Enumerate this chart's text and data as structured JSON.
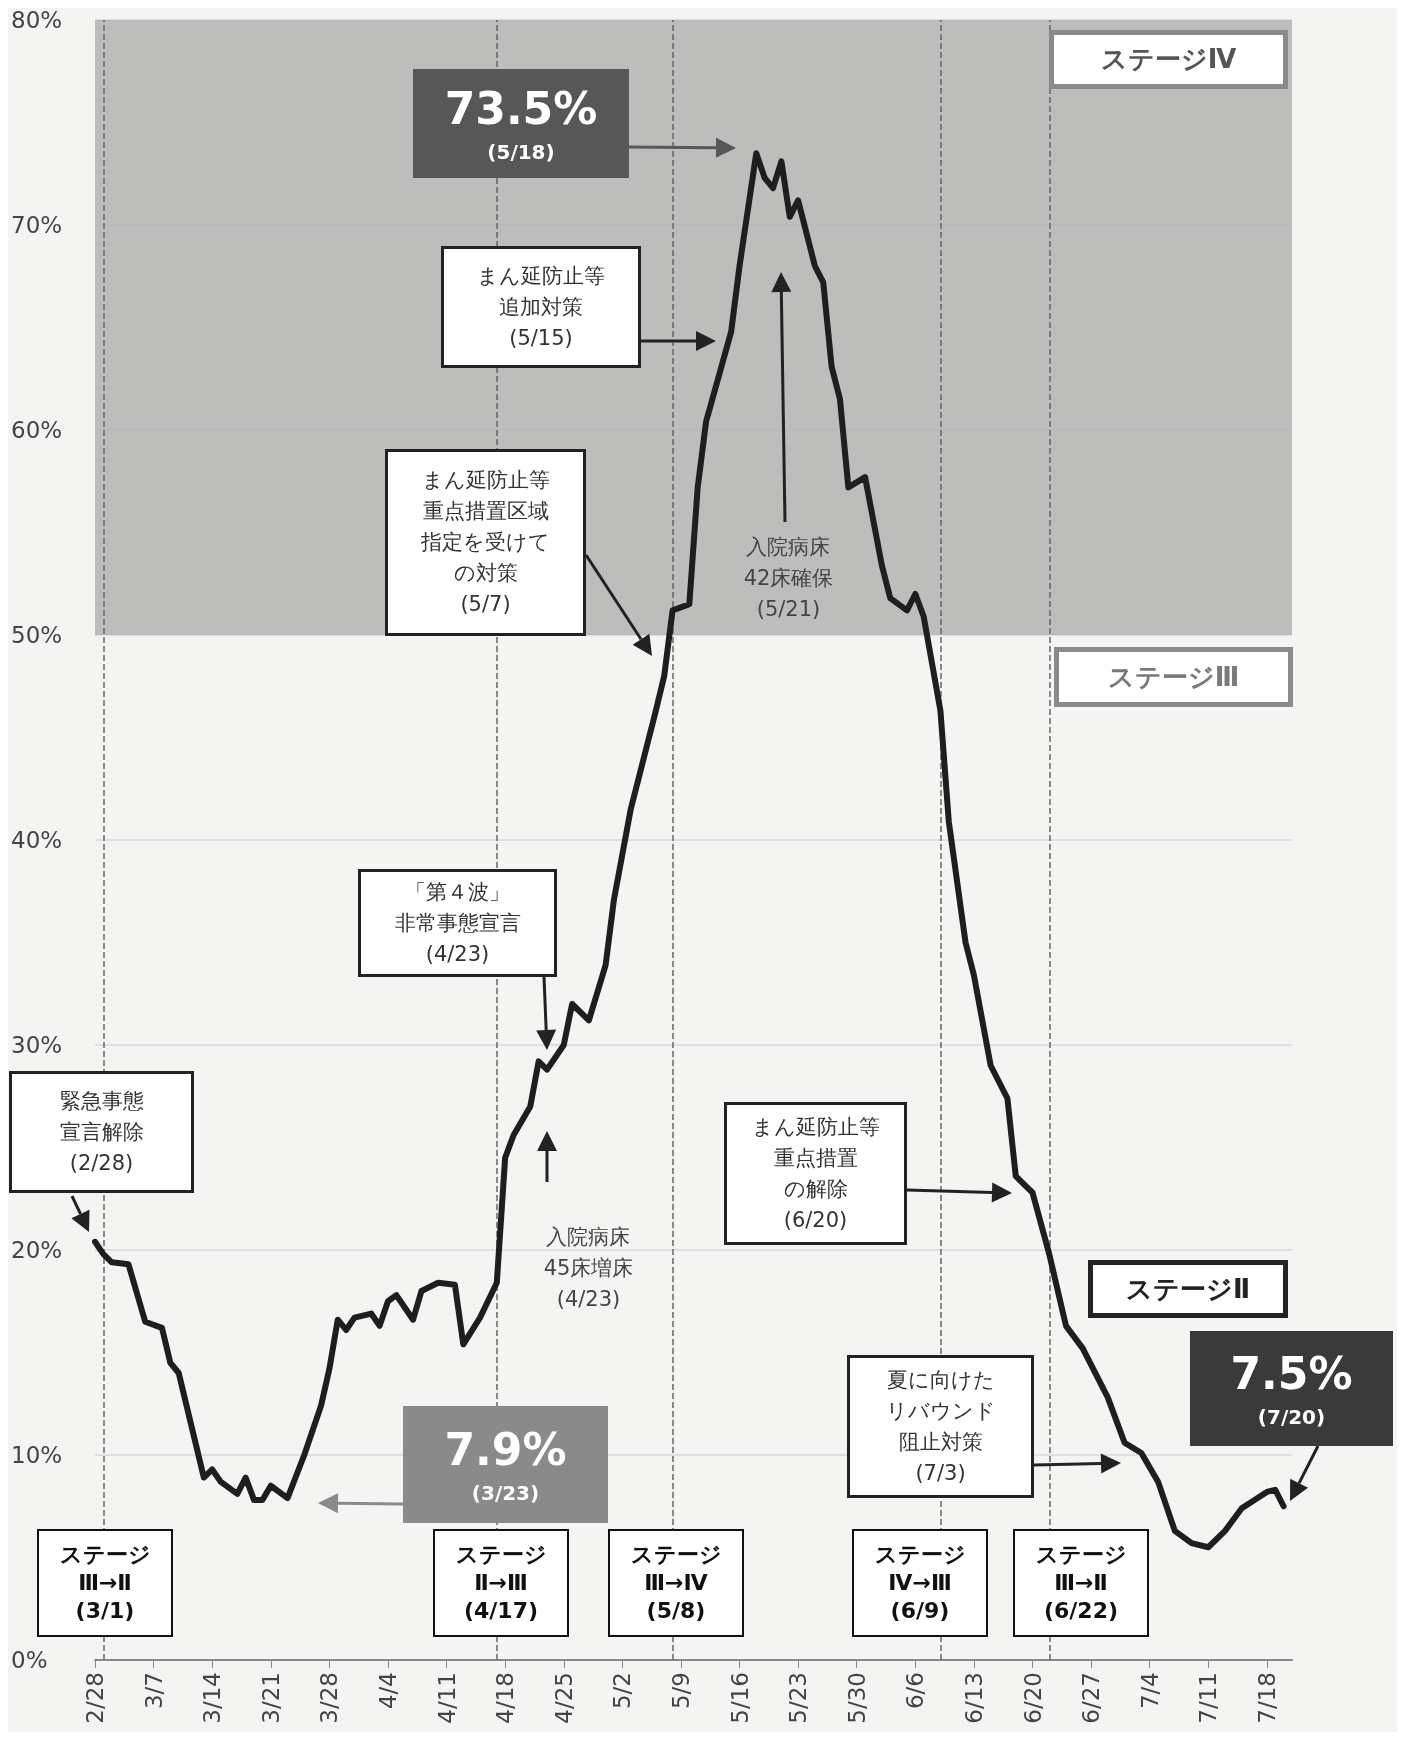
{
  "chart_data": {
    "type": "line",
    "x": [
      "--02-28",
      "--03-01",
      "--03-02",
      "--03-04",
      "--03-06",
      "--03-08",
      "--03-09",
      "--03-10",
      "--03-13",
      "--03-14",
      "--03-15",
      "--03-17",
      "--03-18",
      "--03-19",
      "--03-20",
      "--03-21",
      "--03-23",
      "--03-25",
      "--03-27",
      "--03-28",
      "--03-29",
      "--03-30",
      "--03-31",
      "--04-02",
      "--04-03",
      "--04-04",
      "--04-05",
      "--04-07",
      "--04-08",
      "--04-10",
      "--04-12",
      "--04-13",
      "--04-15",
      "--04-17",
      "--04-18",
      "--04-19",
      "--04-21",
      "--04-22",
      "--04-23",
      "--04-25",
      "--04-26",
      "--04-28",
      "--04-30",
      "--05-01",
      "--05-03",
      "--05-04",
      "--05-06",
      "--05-07",
      "--05-08",
      "--05-10",
      "--05-11",
      "--05-12",
      "--05-15",
      "--05-16",
      "--05-18",
      "--05-19",
      "--05-20",
      "--05-21",
      "--05-22",
      "--05-23",
      "--05-25",
      "--05-26",
      "--05-27",
      "--05-28",
      "--05-29",
      "--05-31",
      "--06-02",
      "--06-03",
      "--06-05",
      "--06-06",
      "--06-07",
      "--06-09",
      "--06-10",
      "--06-12",
      "--06-13",
      "--06-15",
      "--06-17",
      "--06-18",
      "--06-20",
      "--06-22",
      "--06-24",
      "--06-26",
      "--06-29",
      "--07-01",
      "--07-03",
      "--07-05",
      "--07-07",
      "--07-09",
      "--07-11",
      "--07-13",
      "--07-15",
      "--07-18",
      "--07-19",
      "--07-20"
    ],
    "series": [
      {
        "color": "#1e1e1e",
        "values": [
          20.4,
          19.8,
          19.4,
          19.3,
          16.5,
          16.2,
          14.5,
          14.0,
          8.9,
          9.3,
          8.7,
          8.1,
          8.9,
          7.8,
          7.8,
          8.5,
          7.9,
          10.0,
          12.4,
          14.2,
          16.6,
          16.1,
          16.7,
          16.9,
          16.3,
          17.5,
          17.8,
          16.6,
          18.0,
          18.4,
          18.3,
          15.4,
          16.7,
          18.4,
          24.5,
          25.6,
          27.0,
          29.2,
          28.8,
          30.0,
          32.0,
          31.2,
          33.9,
          37.1,
          41.5,
          43.1,
          46.3,
          48.0,
          51.2,
          51.5,
          57.2,
          60.4,
          64.8,
          68.0,
          73.5,
          72.3,
          71.8,
          73.1,
          70.4,
          71.2,
          68.0,
          67.2,
          63.1,
          61.5,
          57.2,
          57.7,
          53.4,
          51.8,
          51.2,
          52.0,
          50.9,
          46.3,
          40.9,
          35.0,
          33.4,
          29.0,
          27.4,
          23.6,
          22.8,
          19.8,
          16.3,
          15.2,
          12.8,
          10.6,
          10.1,
          8.7,
          6.3,
          5.7,
          5.5,
          6.3,
          7.4,
          8.2,
          8.3,
          7.5
        ]
      }
    ],
    "xlim": [
      "--02-28",
      "--07-21"
    ],
    "xticks": [
      {
        "value": "--02-28",
        "label": "2/28"
      },
      {
        "value": "--03-07",
        "label": "3/7"
      },
      {
        "value": "--03-14",
        "label": "3/14"
      },
      {
        "value": "--03-21",
        "label": "3/21"
      },
      {
        "value": "--03-28",
        "label": "3/28"
      },
      {
        "value": "--04-04",
        "label": "4/4"
      },
      {
        "value": "--04-11",
        "label": "4/11"
      },
      {
        "value": "--04-18",
        "label": "4/18"
      },
      {
        "value": "--04-25",
        "label": "4/25"
      },
      {
        "value": "--05-02",
        "label": "5/2"
      },
      {
        "value": "--05-09",
        "label": "5/9"
      },
      {
        "value": "--05-16",
        "label": "5/16"
      },
      {
        "value": "--05-23",
        "label": "5/23"
      },
      {
        "value": "--05-30",
        "label": "5/30"
      },
      {
        "value": "--06-06",
        "label": "6/6"
      },
      {
        "value": "--06-13",
        "label": "6/13"
      },
      {
        "value": "--06-20",
        "label": "6/20"
      },
      {
        "value": "--06-27",
        "label": "6/27"
      },
      {
        "value": "--07-04",
        "label": "7/4"
      },
      {
        "value": "--07-11",
        "label": "7/11"
      },
      {
        "value": "--07-18",
        "label": "7/18"
      }
    ],
    "ylim": [
      0,
      80
    ],
    "yticks": [
      {
        "value": 0,
        "label": "0%"
      },
      {
        "value": 10,
        "label": "10%"
      },
      {
        "value": 20,
        "label": "20%"
      },
      {
        "value": 30,
        "label": "30%"
      },
      {
        "value": 40,
        "label": "40%"
      },
      {
        "value": 50,
        "label": "50%"
      },
      {
        "value": 60,
        "label": "60%"
      },
      {
        "value": 70,
        "label": "70%"
      },
      {
        "value": 80,
        "label": "80%"
      }
    ],
    "grid": "y",
    "marker": "none",
    "line_style": "solid",
    "bands": [
      {
        "axis": "y",
        "from": 50,
        "to": 80,
        "label": "ステージⅣ",
        "color": "#b3b3b3"
      }
    ],
    "ref_lines": [
      {
        "axis": "x",
        "value": "--03-01",
        "label": "ステージ\nⅢ→Ⅱ\n(3/1)",
        "color": "#666666",
        "line_style": "dashed"
      },
      {
        "axis": "x",
        "value": "--04-17",
        "label": "ステージ\nⅡ→Ⅲ\n(4/17)",
        "color": "#666666",
        "line_style": "dashed"
      },
      {
        "axis": "x",
        "value": "--05-08",
        "label": "ステージ\nⅢ→Ⅳ\n(5/8)",
        "color": "#666666",
        "line_style": "dashed"
      },
      {
        "axis": "x",
        "value": "--06-09",
        "label": "ステージ\nⅣ→Ⅲ\n(6/9)",
        "color": "#666666",
        "line_style": "dashed"
      },
      {
        "axis": "x",
        "value": "--06-22",
        "label": "ステージ\nⅢ→Ⅱ\n(6/22)",
        "color": "#666666",
        "line_style": "dashed"
      }
    ],
    "annotations": [
      "緊急事態宣言解除\n(2/28)",
      "7.9%\n(3/23)",
      "入院病床45床増床\n(4/23)",
      "「第４波」非常事態宣言\n(4/23)",
      "まん延防止等重点措置区域指定を受けての対策\n(5/7)",
      "まん延防止等追加対策\n(5/15)",
      "73.5%\n(5/18)",
      "入院病床42床確保\n(5/21)",
      "まん延防止等重点措置の解除\n(6/20)",
      "夏に向けたリバウンド阻止対策\n(7/3)",
      "7.5%\n(7/20)",
      "ステージⅢ",
      "ステージⅡ"
    ]
  }
}
